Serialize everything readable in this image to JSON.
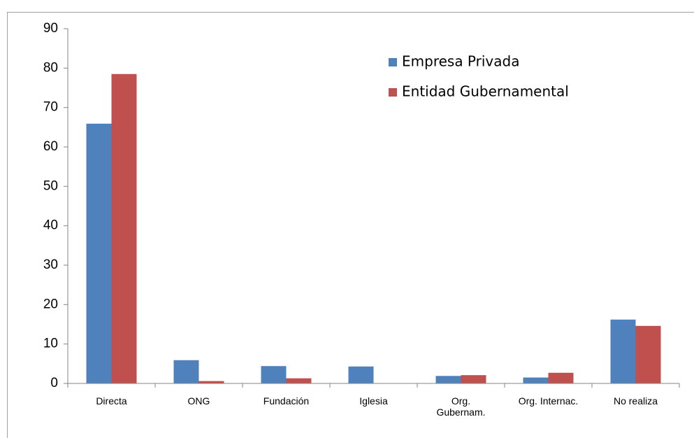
{
  "chart_data": {
    "type": "bar",
    "categories": [
      "Directa",
      "ONG",
      "Fundación",
      "Iglesia",
      "Org. Gubernam.",
      "Org. Internac.",
      "No realiza"
    ],
    "series": [
      {
        "name": "Empresa Privada",
        "color": "#4f81bd",
        "values": [
          65.9,
          5.9,
          4.4,
          4.3,
          1.9,
          1.5,
          16.2
        ]
      },
      {
        "name": "Entidad Gubernamental",
        "color": "#c0504d",
        "values": [
          78.5,
          0.6,
          1.3,
          0,
          2.1,
          2.7,
          14.6
        ]
      }
    ],
    "ylim": [
      0,
      90
    ],
    "yticks": [
      0,
      10,
      20,
      30,
      40,
      50,
      60,
      70,
      80,
      90
    ],
    "grid": false
  }
}
